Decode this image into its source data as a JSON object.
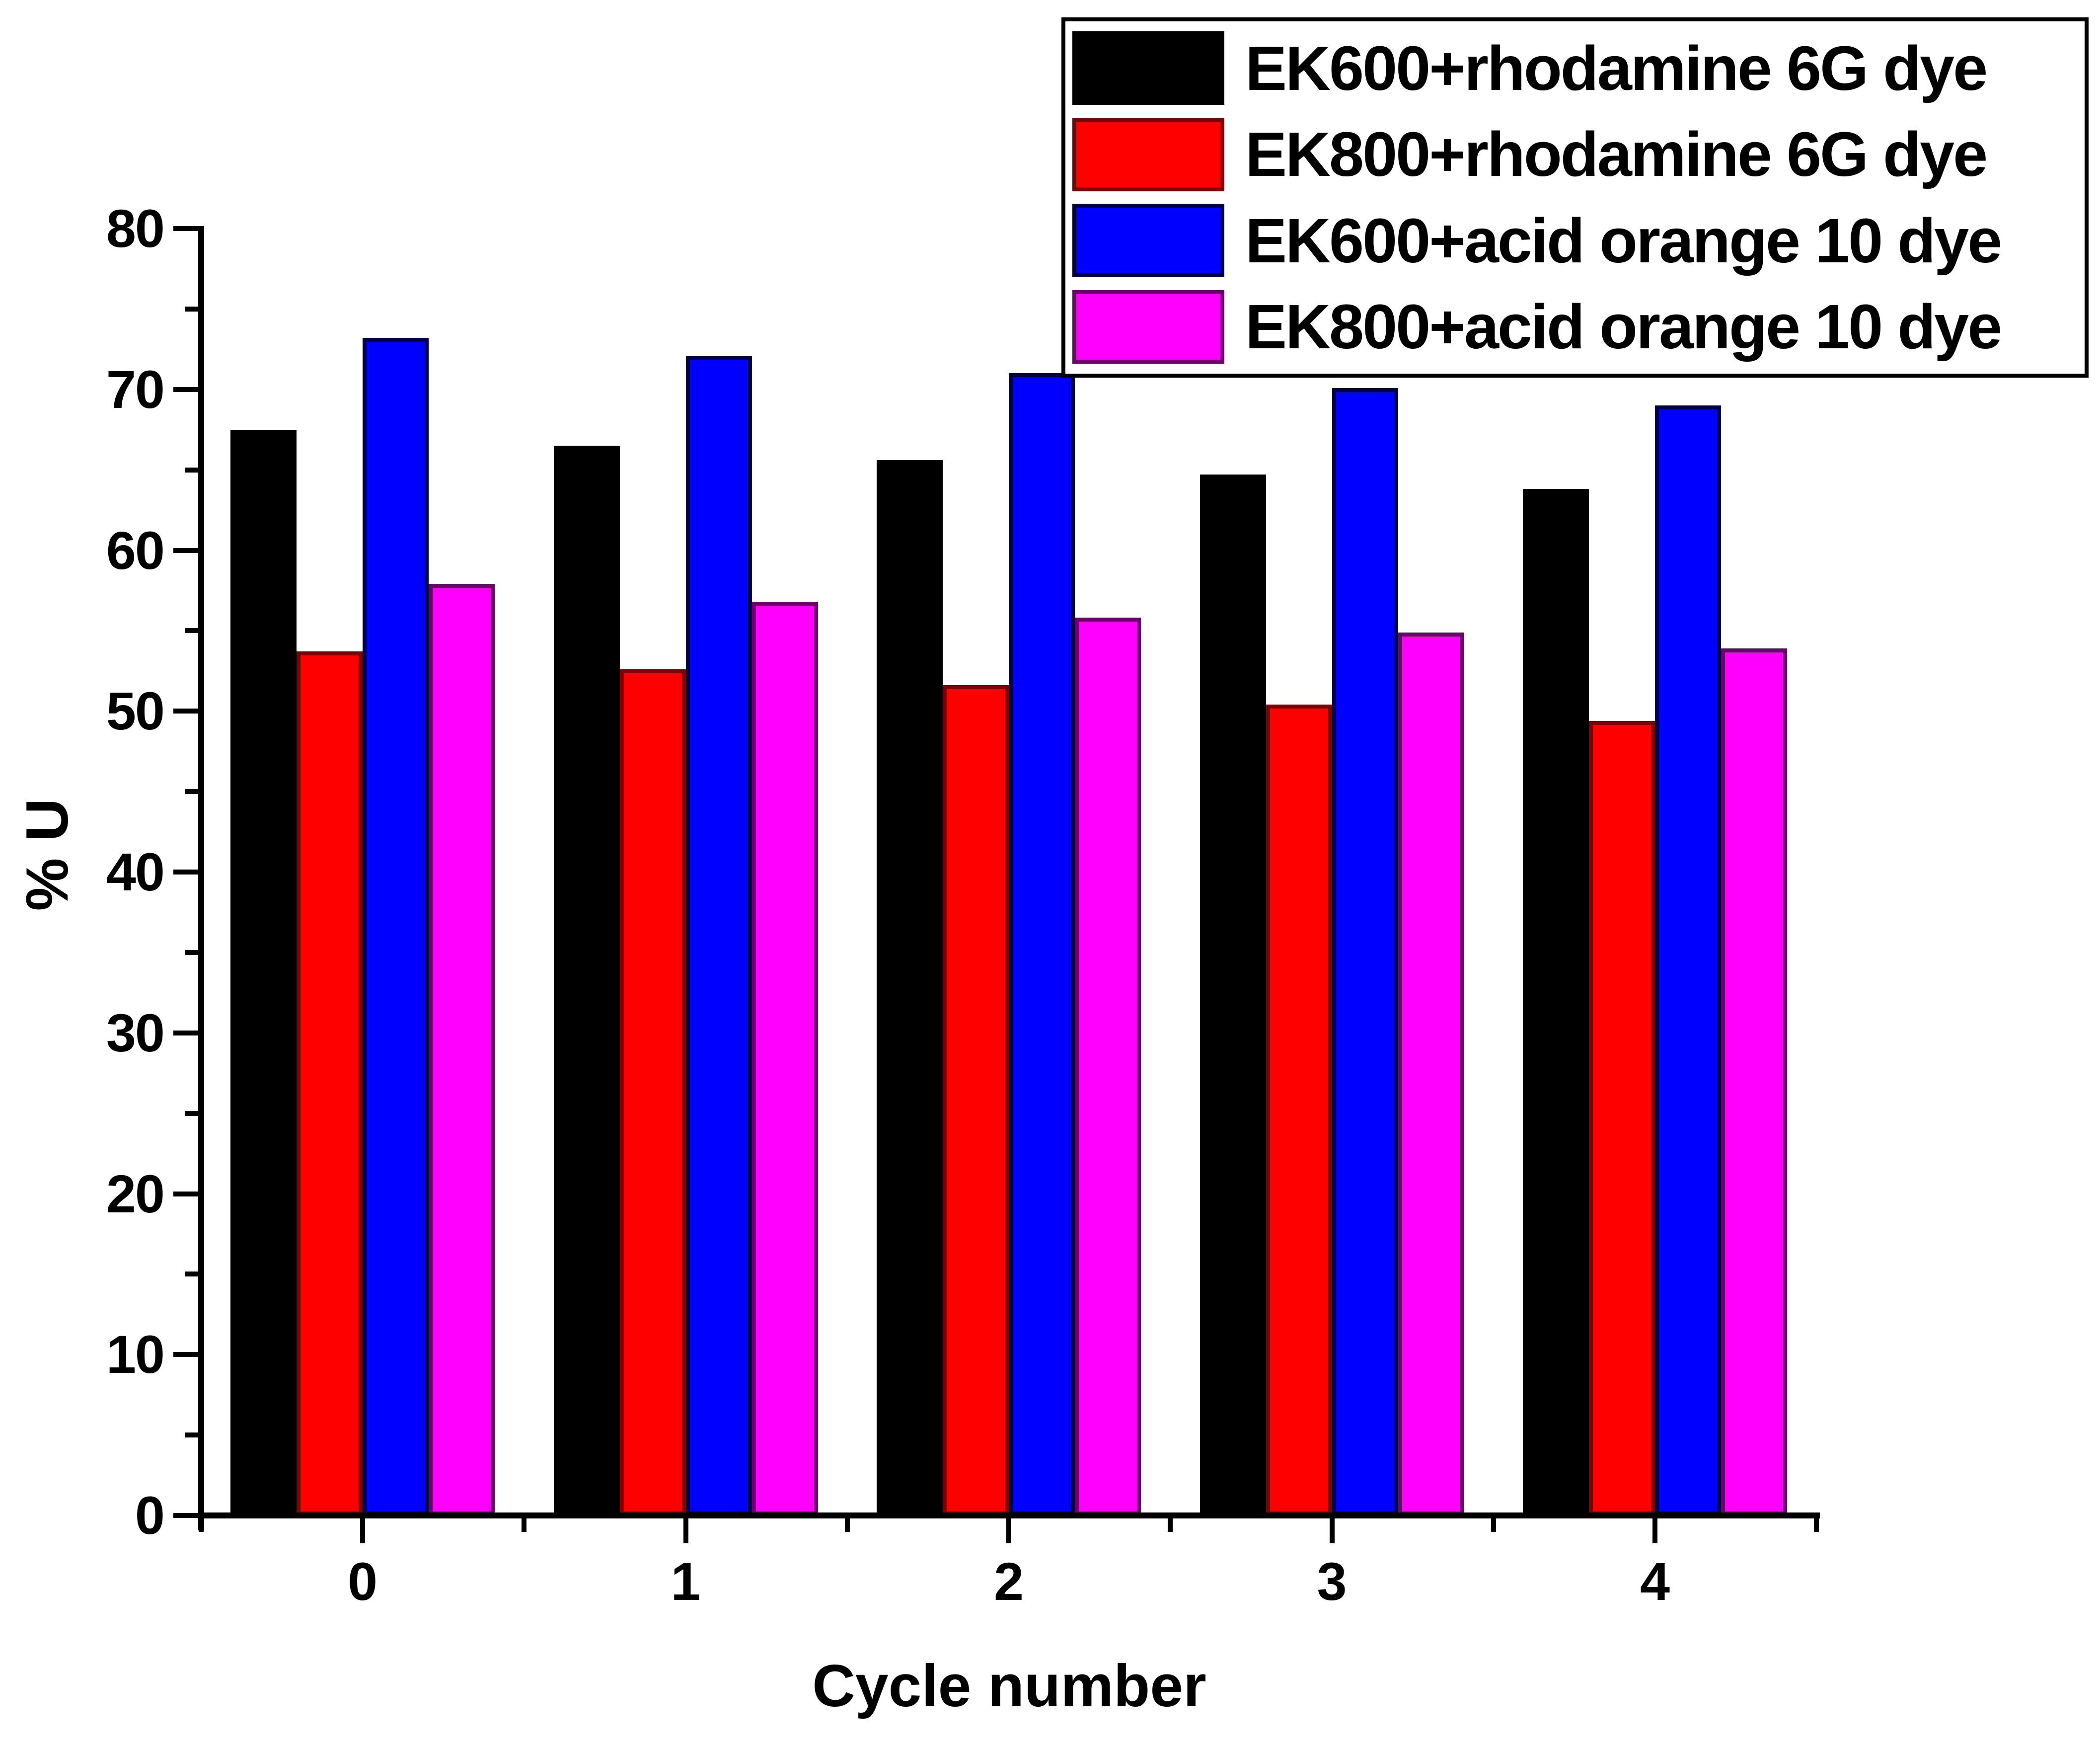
{
  "figure": {
    "background": "#ffffff",
    "xlabel": "Cycle number",
    "ylabel": "% U"
  },
  "legend": {
    "items": [
      {
        "label": "EK600+rhodamine 6G dye",
        "color": "#000000",
        "border": "#000000"
      },
      {
        "label": "EK800+rhodamine 6G dye",
        "color": "#ff0000",
        "border": "#7f0000"
      },
      {
        "label": "EK600+acid orange 10 dye",
        "color": "#0000ff",
        "border": "#000046"
      },
      {
        "label": "EK800+acid orange 10 dye",
        "color": "#ff00ff",
        "border": "#6d006d"
      }
    ]
  },
  "chart_data": {
    "type": "bar",
    "title": "",
    "xlabel": "Cycle number",
    "ylabel": "% U",
    "categories": [
      "0",
      "1",
      "2",
      "3",
      "4"
    ],
    "series": [
      {
        "name": "EK600+rhodamine 6G dye",
        "color": "#000000",
        "border": "#000000",
        "values": [
          67.5,
          66.5,
          65.6,
          64.7,
          63.8
        ]
      },
      {
        "name": "EK800+rhodamine 6G dye",
        "color": "#ff0000",
        "border": "#7f0000",
        "values": [
          53.7,
          52.6,
          51.6,
          50.4,
          49.4
        ]
      },
      {
        "name": "EK600+acid orange 10 dye",
        "color": "#0000ff",
        "border": "#000046",
        "values": [
          73.2,
          72.1,
          71.0,
          70.1,
          69.0
        ]
      },
      {
        "name": "EK800+acid orange 10 dye",
        "color": "#ff00ff",
        "border": "#6d006d",
        "values": [
          57.9,
          56.8,
          55.8,
          54.9,
          53.9
        ]
      }
    ],
    "ylim": [
      0,
      80
    ],
    "yticks_major": [
      0,
      10,
      20,
      30,
      40,
      50,
      60,
      70,
      80
    ],
    "yticks_minor": [
      5,
      15,
      25,
      35,
      45,
      55,
      65,
      75
    ],
    "grid": false,
    "legend_position": "top-right"
  }
}
